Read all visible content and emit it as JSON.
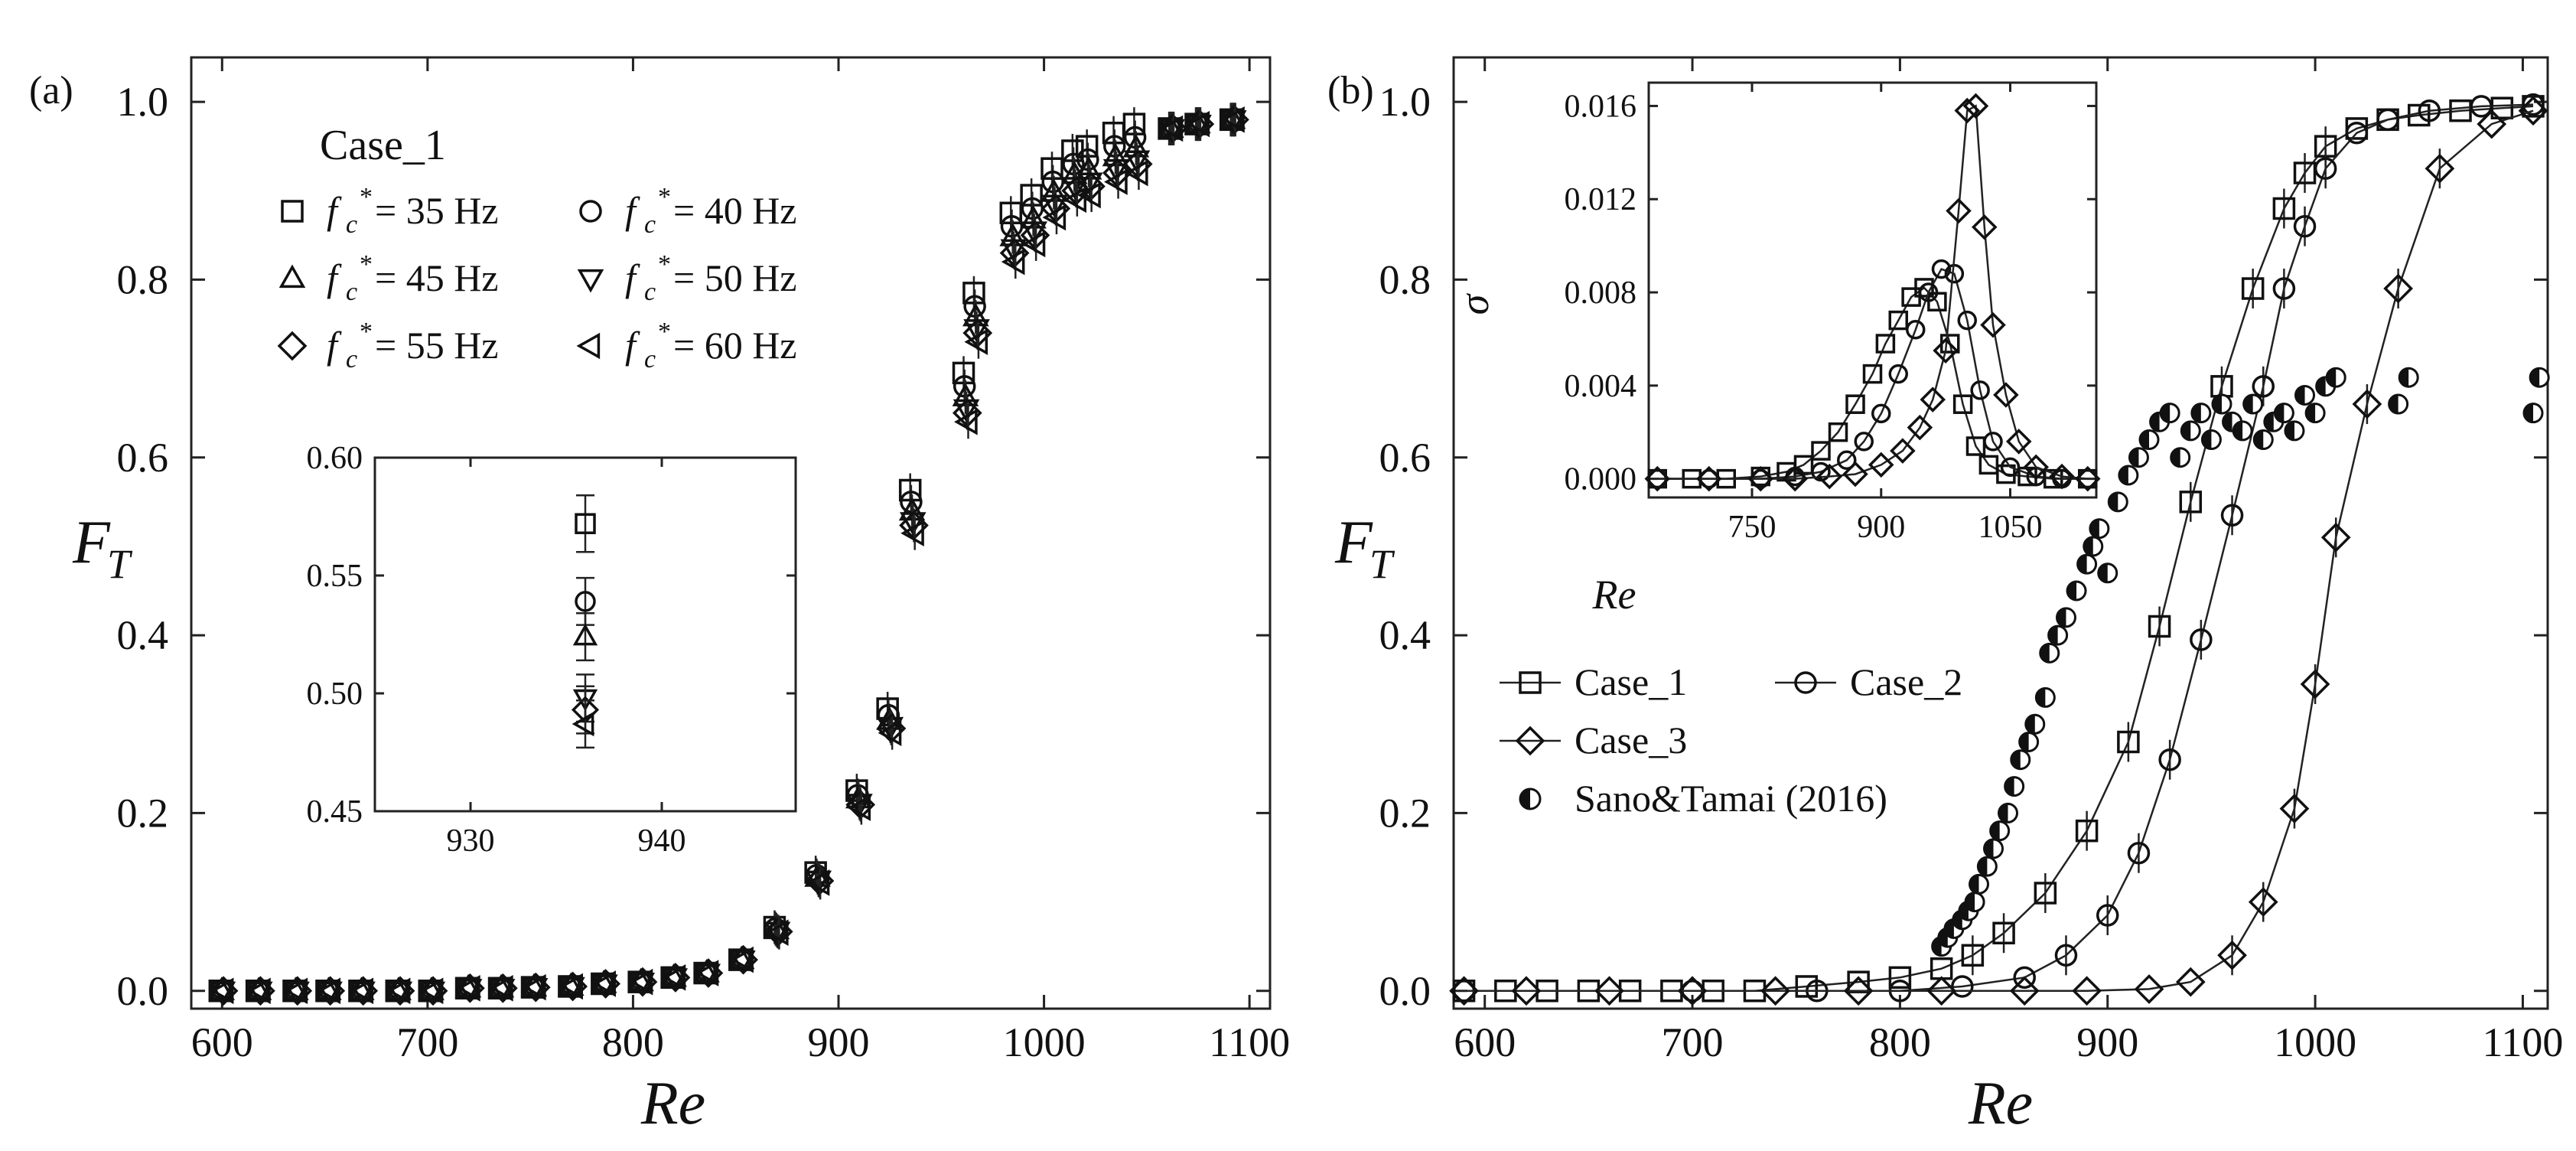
{
  "chart_data": [
    {
      "panel": "(a)",
      "type": "scatter",
      "xlabel": "Re",
      "ylabel": "F_T",
      "ylabel_main": "F",
      "ylabel_sub": "T",
      "xlim": [
        585,
        1110
      ],
      "ylim": [
        -0.02,
        1.05
      ],
      "xticks": [
        600,
        700,
        800,
        900,
        1000,
        1100
      ],
      "yticks": [
        0.0,
        0.2,
        0.4,
        0.6,
        0.8,
        1.0
      ],
      "xtick_labels": [
        "600",
        "700",
        "800",
        "900",
        "1000",
        "1100"
      ],
      "ytick_labels": [
        "0.0",
        "0.2",
        "0.4",
        "0.6",
        "0.8",
        "1.0"
      ],
      "legend_title": "Case_1",
      "legend_prefix": "f",
      "legend_prefix_sub": "c",
      "legend_prefix_sup": "*",
      "series": [
        {
          "name": "= 35 Hz",
          "marker": "square",
          "offset": 0.015
        },
        {
          "name": "= 40 Hz",
          "marker": "circle",
          "offset": 0.0
        },
        {
          "name": "= 45 Hz",
          "marker": "triangle-up",
          "offset": -0.012
        },
        {
          "name": "= 50 Hz",
          "marker": "triangle-down",
          "offset": -0.025
        },
        {
          "name": "= 55 Hz",
          "marker": "diamond",
          "offset": -0.03
        },
        {
          "name": "= 60 Hz",
          "marker": "triangle-left",
          "offset": -0.04
        }
      ],
      "x": [
        600,
        618,
        636,
        652,
        668,
        686,
        702,
        720,
        736,
        752,
        770,
        786,
        804,
        820,
        836,
        853,
        870,
        890,
        910,
        925,
        936,
        962,
        967,
        985,
        995,
        1005,
        1015,
        1022,
        1035,
        1045,
        1062,
        1075,
        1092
      ],
      "base_values": [
        0.0,
        0.0,
        0.0,
        0.0,
        0.0,
        0.0,
        0.0,
        0.003,
        0.003,
        0.004,
        0.005,
        0.008,
        0.01,
        0.015,
        0.02,
        0.035,
        0.07,
        0.13,
        0.22,
        0.31,
        0.55,
        0.68,
        0.77,
        0.86,
        0.88,
        0.91,
        0.93,
        0.935,
        0.95,
        0.96,
        0.97,
        0.975,
        0.98
      ],
      "inset": {
        "xlim": [
          925,
          947
        ],
        "ylim": [
          0.45,
          0.6
        ],
        "xticks": [
          930,
          940
        ],
        "yticks": [
          0.45,
          0.5,
          0.55,
          0.6
        ],
        "xtick_labels": [
          "930",
          "940"
        ],
        "ytick_labels": [
          "0.45",
          "0.50",
          "0.55",
          "0.60"
        ],
        "x": 936,
        "values": [
          0.572,
          0.539,
          0.524,
          0.498,
          0.493,
          0.487
        ],
        "errors": [
          0.012,
          0.01,
          0.01,
          0.01,
          0.01,
          0.01
        ]
      }
    },
    {
      "panel": "(b)",
      "type": "line",
      "xlabel": "Re",
      "ylabel": "F_T",
      "ylabel_main": "F",
      "ylabel_sub": "T",
      "xlim": [
        585,
        1112
      ],
      "ylim": [
        -0.02,
        1.05
      ],
      "xticks": [
        600,
        700,
        800,
        900,
        1000,
        1100
      ],
      "yticks": [
        0.0,
        0.2,
        0.4,
        0.6,
        0.8,
        1.0
      ],
      "xtick_labels": [
        "600",
        "700",
        "800",
        "900",
        "1000",
        "1100"
      ],
      "ytick_labels": [
        "0.0",
        "0.2",
        "0.4",
        "0.6",
        "0.8",
        "1.0"
      ],
      "series": [
        {
          "name": "Case_1",
          "marker": "square",
          "x": [
            590,
            610,
            630,
            650,
            670,
            690,
            710,
            730,
            755,
            780,
            800,
            820,
            835,
            850,
            870,
            890,
            910,
            925,
            940,
            955,
            970,
            985,
            995,
            1005,
            1020,
            1035,
            1050,
            1070,
            1090,
            1105
          ],
          "y": [
            0.0,
            0.0,
            0.0,
            0.0,
            0.0,
            0.0,
            0.0,
            0.0,
            0.005,
            0.01,
            0.015,
            0.025,
            0.04,
            0.065,
            0.11,
            0.18,
            0.28,
            0.41,
            0.55,
            0.68,
            0.79,
            0.88,
            0.92,
            0.95,
            0.97,
            0.98,
            0.985,
            0.99,
            0.993,
            0.995
          ]
        },
        {
          "name": "Case_2",
          "marker": "circle",
          "x": [
            590,
            700,
            760,
            800,
            830,
            860,
            880,
            900,
            915,
            930,
            945,
            960,
            975,
            985,
            995,
            1005,
            1020,
            1035,
            1055,
            1080,
            1105
          ],
          "y": [
            0.0,
            0.0,
            0.0,
            0.0,
            0.005,
            0.015,
            0.04,
            0.085,
            0.155,
            0.26,
            0.395,
            0.535,
            0.68,
            0.79,
            0.86,
            0.925,
            0.965,
            0.98,
            0.99,
            0.995,
            0.997
          ]
        },
        {
          "name": "Case_3",
          "marker": "diamond",
          "x": [
            590,
            620,
            660,
            700,
            740,
            780,
            820,
            860,
            890,
            920,
            940,
            960,
            975,
            990,
            1000,
            1010,
            1025,
            1040,
            1060,
            1085,
            1105
          ],
          "y": [
            0.0,
            0.0,
            0.0,
            0.0,
            0.0,
            0.0,
            0.0,
            0.0,
            0.0,
            0.002,
            0.01,
            0.04,
            0.1,
            0.205,
            0.345,
            0.51,
            0.66,
            0.79,
            0.925,
            0.975,
            0.99
          ]
        },
        {
          "name": "Sano&Tamai (2016)",
          "marker": "half-filled-circle",
          "x": [
            820,
            823,
            826,
            830,
            833,
            836,
            838,
            842,
            845,
            848,
            852,
            855,
            858,
            862,
            865,
            870,
            872,
            876,
            880,
            885,
            890,
            893,
            896,
            900,
            905,
            910,
            915,
            920,
            925,
            930,
            935,
            940,
            945,
            950,
            955,
            960,
            965,
            970,
            975,
            980,
            985,
            990,
            995,
            1000,
            1005,
            1010,
            1040,
            1045,
            1105,
            1108
          ],
          "y": [
            0.05,
            0.06,
            0.07,
            0.08,
            0.09,
            0.1,
            0.12,
            0.14,
            0.16,
            0.18,
            0.2,
            0.23,
            0.26,
            0.28,
            0.3,
            0.33,
            0.38,
            0.4,
            0.42,
            0.45,
            0.48,
            0.5,
            0.52,
            0.47,
            0.55,
            0.58,
            0.6,
            0.62,
            0.64,
            0.65,
            0.6,
            0.63,
            0.65,
            0.62,
            0.66,
            0.64,
            0.63,
            0.66,
            0.62,
            0.64,
            0.65,
            0.63,
            0.67,
            0.65,
            0.68,
            0.69,
            0.66,
            0.69,
            0.65,
            0.69
          ]
        }
      ],
      "inset": {
        "xlabel": "Re",
        "ylabel": "σ",
        "xlim": [
          630,
          1150
        ],
        "ylim": [
          -0.0008,
          0.017
        ],
        "xticks": [
          750,
          900,
          1050
        ],
        "yticks": [
          0.0,
          0.004,
          0.008,
          0.012,
          0.016
        ],
        "xtick_labels": [
          "750",
          "900",
          "1050"
        ],
        "ytick_labels": [
          "0.000",
          "0.004",
          "0.008",
          "0.012",
          "0.016"
        ],
        "series": [
          {
            "name": "Case_1",
            "marker": "square",
            "x": [
              640,
              680,
              720,
              760,
              790,
              810,
              830,
              850,
              870,
              890,
              905,
              920,
              935,
              950,
              965,
              980,
              995,
              1010,
              1025,
              1045,
              1070,
              1100,
              1140
            ],
            "y": [
              0.0,
              0.0,
              0.0,
              0.0001,
              0.0003,
              0.0006,
              0.0012,
              0.002,
              0.0032,
              0.0045,
              0.0058,
              0.0068,
              0.0078,
              0.0082,
              0.0076,
              0.0058,
              0.0032,
              0.0014,
              0.0006,
              0.0002,
              0.0001,
              0.0,
              0.0
            ]
          },
          {
            "name": "Case_2",
            "marker": "circle",
            "x": [
              640,
              700,
              760,
              800,
              830,
              860,
              880,
              900,
              920,
              940,
              955,
              970,
              985,
              1000,
              1015,
              1030,
              1050,
              1080,
              1110,
              1140
            ],
            "y": [
              0.0,
              0.0,
              0.0,
              0.0001,
              0.0003,
              0.0008,
              0.0016,
              0.0028,
              0.0045,
              0.0064,
              0.008,
              0.009,
              0.0088,
              0.0068,
              0.0038,
              0.0016,
              0.0005,
              0.0001,
              0.0,
              0.0
            ]
          },
          {
            "name": "Case_3",
            "marker": "diamond",
            "x": [
              640,
              700,
              760,
              800,
              840,
              870,
              900,
              925,
              945,
              960,
              975,
              990,
              1000,
              1010,
              1020,
              1030,
              1045,
              1060,
              1080,
              1110,
              1140
            ],
            "y": [
              0.0,
              0.0,
              0.0,
              0.0,
              0.0001,
              0.0002,
              0.0006,
              0.0012,
              0.0022,
              0.0034,
              0.0055,
              0.0115,
              0.0158,
              0.016,
              0.0108,
              0.0066,
              0.0036,
              0.0016,
              0.0005,
              0.0001,
              0.0
            ]
          }
        ]
      },
      "legend": [
        "Case_1",
        "Case_2",
        "Case_3",
        "Sano&Tamai (2016)"
      ]
    }
  ]
}
